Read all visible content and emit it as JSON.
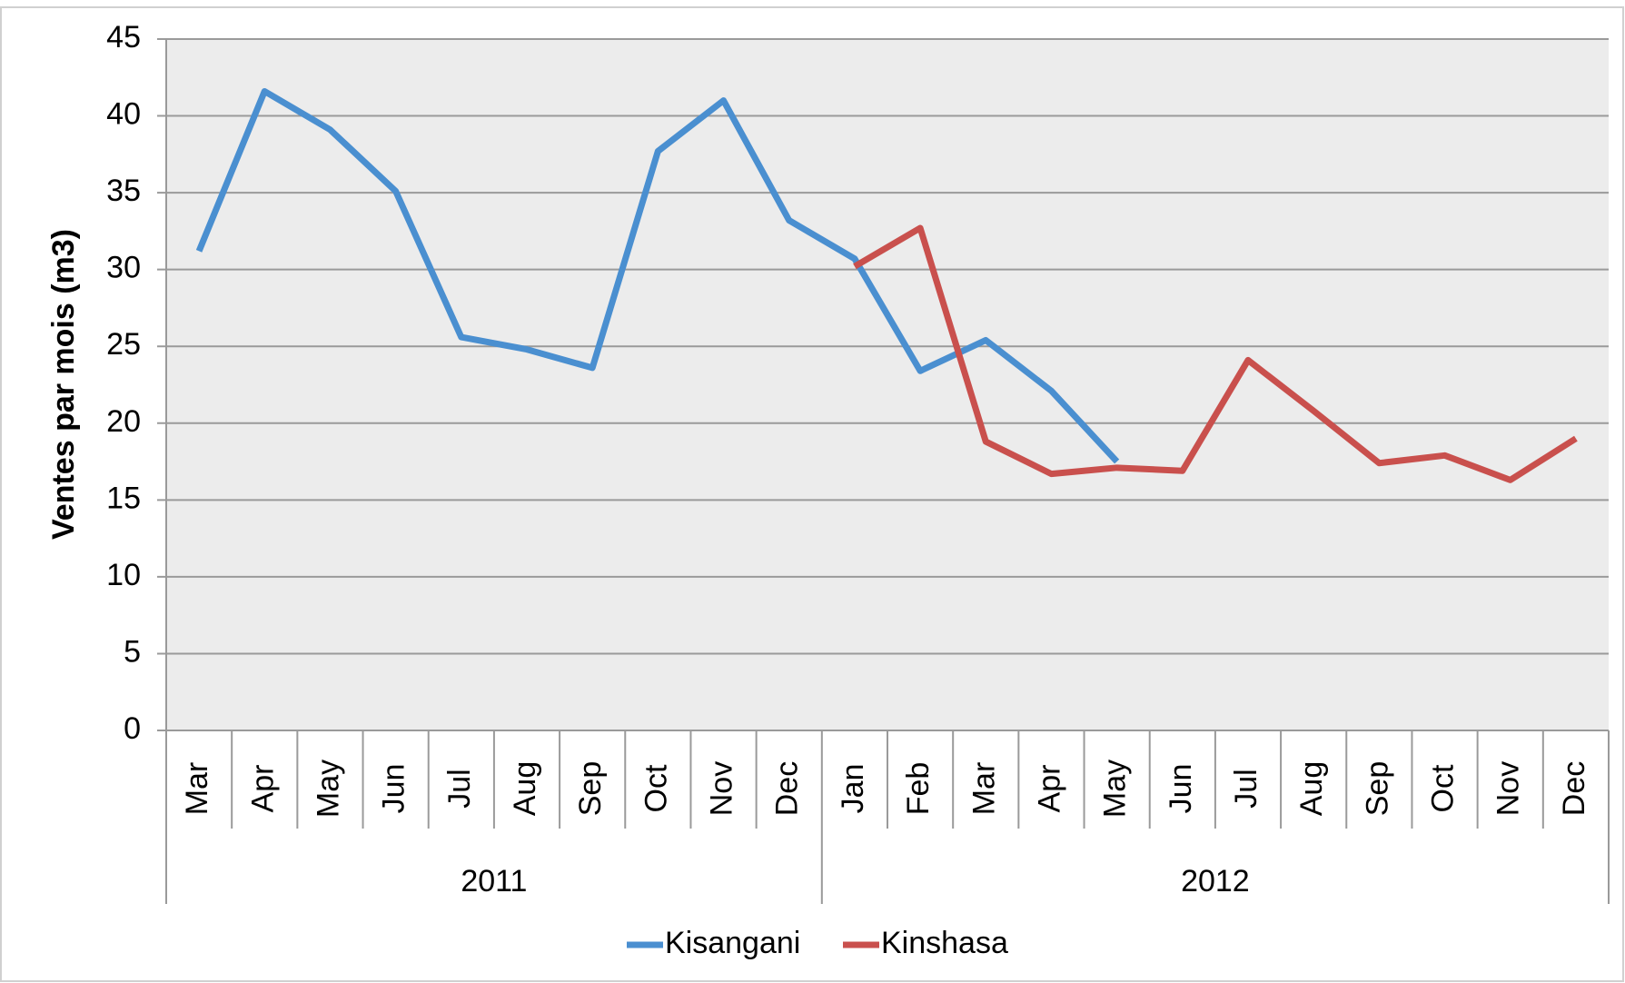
{
  "chart_data": {
    "type": "line",
    "y_label": "Ventes par mois (m3)",
    "groups": [
      {
        "label": "2011",
        "categories": [
          "Mar",
          "Apr",
          "May",
          "Jun",
          "Jul",
          "Aug",
          "Sep",
          "Oct",
          "Nov",
          "Dec"
        ]
      },
      {
        "label": "2012",
        "categories": [
          "Jan",
          "Feb",
          "Mar",
          "Apr",
          "May",
          "Jun",
          "Jul",
          "Aug",
          "Sep",
          "Oct",
          "Nov",
          "Dec"
        ]
      }
    ],
    "series": [
      {
        "name": "Kisangani",
        "color": "#4a8fd0",
        "values": [
          31.2,
          41.6,
          39.1,
          35.1,
          25.6,
          24.8,
          23.6,
          37.7,
          41.0,
          33.2,
          30.7,
          23.4,
          25.4,
          22.1,
          17.5,
          null,
          null,
          null,
          null,
          null,
          null,
          null
        ]
      },
      {
        "name": "Kinshasa",
        "color": "#c9504d",
        "values": [
          null,
          null,
          null,
          null,
          null,
          null,
          null,
          null,
          null,
          null,
          30.2,
          32.7,
          18.8,
          16.7,
          17.1,
          16.9,
          24.1,
          20.8,
          17.4,
          17.9,
          16.3,
          19.0
        ]
      }
    ],
    "ylim": [
      0,
      45
    ],
    "yticks": [
      0,
      5,
      10,
      15,
      20,
      25,
      30,
      35,
      40,
      45
    ],
    "grid": true,
    "legend": "bottom"
  }
}
